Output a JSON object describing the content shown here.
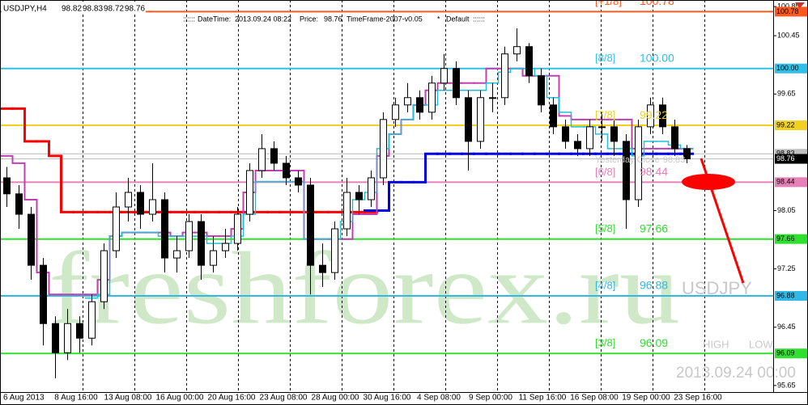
{
  "chart_data": {
    "type": "candlestick",
    "symbol": "USDJPY,H4",
    "ohlc_header": [
      98.82,
      98.83,
      98.72,
      98.76
    ],
    "info": {
      "lead": "::::::",
      "datetime_label": "DateTime:",
      "datetime": "2013.09.24 08:22",
      "price_label": "Price:",
      "price": 98.76,
      "version": "TimeFrame-2007-v0.05",
      "star": "*",
      "profile": "Default",
      "tail": "::::::"
    },
    "watermark": "freshforex.ru",
    "corner_symbol": "USDJPY",
    "corner_high": "HIGH",
    "corner_low": "LOW",
    "corner_date": "2013.09.24 00:00",
    "x_labels": [
      "6 Aug 2013",
      "8 Aug 16:00",
      "13 Aug 08:00",
      "16 Aug 00:00",
      "20 Aug 16:00",
      "23 Aug 08:00",
      "28 Aug 00:00",
      "30 Aug 16:00",
      "4 Sep 08:00",
      "9 Sep 00:00",
      "11 Sep 16:00",
      "16 Sep 08:00",
      "19 Sep 00:00",
      "23 Sep 16:00"
    ],
    "ylim": [
      95.56,
      100.94
    ],
    "yticks": [
      95.65,
      96.45,
      97.25,
      98.05,
      99.65,
      100.45,
      100.85
    ],
    "open": [
      98.5,
      98.28,
      98.0,
      97.3,
      96.5,
      96.1,
      96.5,
      96.3,
      96.8,
      97.5,
      98.1,
      98.3,
      98.0,
      98.2,
      97.4,
      97.5,
      97.9,
      97.3,
      97.5,
      97.6,
      98.0,
      98.6,
      98.9,
      98.7,
      98.5,
      98.4,
      97.3,
      97.2,
      97.8,
      98.3,
      98.2,
      98.5,
      99.3,
      99.5,
      99.6,
      99.4,
      99.8,
      100.0,
      99.6,
      99.0,
      99.6,
      99.6,
      100.2,
      100.3,
      99.9,
      99.5,
      99.2,
      99.0,
      98.9,
      99.2,
      99.2,
      99.0,
      98.2,
      99.2,
      99.5,
      99.2,
      98.9
    ],
    "high": [
      98.65,
      98.4,
      98.1,
      97.4,
      96.6,
      96.7,
      96.6,
      96.9,
      97.6,
      98.3,
      98.5,
      98.4,
      98.7,
      98.3,
      97.7,
      98.0,
      98.0,
      97.7,
      97.8,
      98.1,
      98.7,
      99.1,
      99.0,
      98.8,
      98.6,
      98.5,
      97.6,
      97.9,
      98.5,
      98.4,
      98.6,
      99.4,
      99.6,
      99.8,
      99.7,
      99.9,
      100.2,
      100.1,
      99.7,
      99.7,
      99.8,
      100.3,
      100.55,
      100.35,
      100.0,
      99.6,
      99.3,
      99.1,
      99.3,
      99.4,
      99.3,
      99.1,
      99.3,
      99.6,
      99.6,
      99.3,
      98.95
    ],
    "low": [
      98.1,
      97.8,
      97.1,
      96.2,
      95.75,
      96.0,
      96.1,
      96.2,
      96.7,
      97.4,
      97.9,
      97.8,
      97.9,
      97.2,
      97.2,
      97.4,
      97.1,
      97.2,
      97.4,
      97.5,
      97.9,
      98.5,
      98.6,
      98.4,
      98.3,
      96.9,
      97.0,
      97.1,
      97.7,
      98.0,
      98.1,
      98.4,
      99.2,
      99.4,
      99.3,
      99.3,
      99.7,
      99.5,
      98.6,
      98.9,
      99.4,
      99.5,
      100.1,
      99.8,
      99.4,
      99.1,
      98.9,
      98.8,
      98.8,
      99.0,
      98.8,
      97.8,
      98.1,
      99.1,
      99.1,
      98.8,
      98.7
    ],
    "close": [
      98.28,
      98.0,
      97.3,
      96.5,
      96.1,
      96.5,
      96.3,
      96.8,
      97.5,
      98.1,
      98.3,
      98.0,
      98.2,
      97.4,
      97.5,
      97.9,
      97.3,
      97.5,
      97.6,
      98.0,
      98.6,
      98.9,
      98.7,
      98.5,
      98.4,
      97.3,
      97.2,
      97.8,
      98.3,
      98.2,
      98.5,
      99.3,
      99.5,
      99.6,
      99.4,
      99.8,
      100.0,
      99.6,
      99.0,
      99.6,
      99.6,
      100.2,
      100.3,
      99.9,
      99.5,
      99.2,
      99.0,
      98.9,
      99.2,
      99.2,
      99.0,
      98.2,
      99.2,
      99.5,
      99.2,
      98.9,
      98.76
    ],
    "series": [
      {
        "color": "#ff0000",
        "width": 3,
        "values": [
          99.45,
          99.45,
          99.0,
          99.0,
          98.8,
          98.03,
          98.03,
          98.03,
          98.03,
          98.03,
          98.03,
          98.03,
          98.03,
          98.03,
          98.03,
          98.03,
          98.03,
          98.03,
          98.03,
          98.03,
          98.03,
          98.03,
          98.03,
          98.03,
          98.03,
          98.03,
          98.03,
          98.03,
          98.03,
          98.03,
          98.03,
          null,
          null,
          null,
          null,
          null,
          null,
          null,
          null,
          null,
          null,
          null,
          null,
          null,
          null,
          null,
          null,
          null,
          null,
          null,
          null,
          null,
          null,
          null,
          null,
          null,
          null
        ]
      },
      {
        "color": "#0000e0",
        "width": 3,
        "values": [
          null,
          null,
          null,
          null,
          null,
          null,
          null,
          null,
          null,
          null,
          null,
          null,
          null,
          null,
          null,
          null,
          null,
          null,
          null,
          null,
          null,
          null,
          null,
          null,
          null,
          null,
          null,
          null,
          null,
          null,
          98.05,
          98.05,
          98.44,
          98.44,
          98.44,
          98.83,
          98.83,
          98.83,
          98.83,
          98.83,
          98.83,
          98.83,
          98.83,
          98.83,
          98.83,
          98.83,
          98.83,
          98.83,
          98.83,
          98.83,
          98.83,
          98.83,
          98.83,
          98.83,
          98.83,
          98.83,
          98.83
        ]
      },
      {
        "color": "#c040b0",
        "width": 2,
        "values": [
          98.8,
          98.7,
          98.2,
          97.2,
          96.9,
          96.9,
          96.9,
          96.9,
          97.1,
          97.7,
          97.75,
          97.75,
          97.75,
          97.75,
          97.7,
          97.75,
          97.75,
          97.7,
          97.7,
          97.8,
          98.3,
          98.6,
          98.6,
          98.6,
          98.6,
          97.66,
          97.66,
          97.66,
          97.66,
          98.0,
          98.0,
          98.8,
          99.1,
          99.3,
          99.5,
          99.7,
          99.8,
          99.8,
          99.8,
          99.8,
          100.0,
          100.0,
          100.0,
          99.9,
          99.9,
          99.9,
          99.35,
          99.3,
          99.3,
          99.3,
          99.3,
          99.3,
          98.9,
          98.9,
          98.9,
          98.9,
          98.9
        ]
      },
      {
        "color": "#20c0d8",
        "width": 1.5,
        "values": [
          null,
          null,
          null,
          null,
          null,
          null,
          null,
          96.85,
          96.9,
          97.7,
          97.75,
          97.75,
          97.75,
          97.7,
          97.7,
          97.7,
          97.7,
          97.6,
          97.6,
          97.7,
          98.0,
          98.45,
          98.45,
          98.45,
          98.45,
          97.66,
          97.66,
          97.66,
          97.9,
          98.2,
          98.3,
          98.9,
          99.1,
          99.3,
          99.5,
          99.5,
          99.7,
          99.7,
          99.7,
          99.7,
          99.8,
          99.95,
          100.0,
          100.0,
          99.9,
          99.6,
          99.4,
          99.2,
          99.2,
          99.1,
          98.9,
          98.9,
          98.8,
          99.0,
          99.0,
          98.95,
          98.9
        ]
      }
    ],
    "levels": [
      {
        "label": "[+1/8]",
        "value": 100.78,
        "color": "#ff5a1e"
      },
      {
        "label": "[8/8]",
        "value": {
          "value": 100,
          "label": "100.00"
        },
        "color": "#30bfe6"
      },
      {
        "label": "[7/8]",
        "value": 99.22,
        "color": "#f0d020"
      },
      {
        "label": "[6/8]",
        "value": 98.44,
        "color": "#e880b8"
      },
      {
        "label": "[5/8]",
        "value": 97.66,
        "color": "#30e030"
      },
      {
        "label": "[4/8]",
        "value": 96.88,
        "color": "#30b8e6"
      },
      {
        "label": "[3/8]",
        "value": 96.09,
        "color": "#30e030"
      }
    ],
    "yesterday_close": {
      "label": "Yesterday Close",
      "value": 98.83,
      "color": "#b8b8b8"
    },
    "current_price": 98.76
  }
}
